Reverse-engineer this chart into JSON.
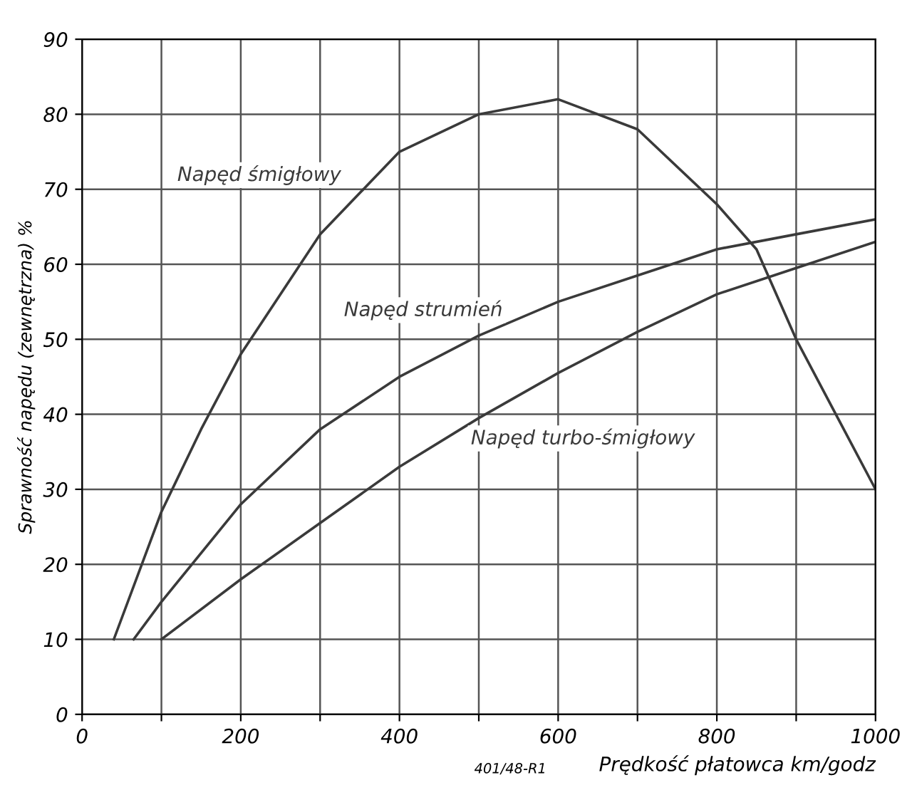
{
  "chart_data": {
    "type": "line",
    "xlabel": "Prędkość płatowca km/godz",
    "ylabel": "Sprawność napędu (zewnętrzna) %",
    "series": [
      {
        "name": "Napęd śmigłowy",
        "color": "#3a3a3a",
        "x": [
          40,
          100,
          150,
          200,
          300,
          400,
          500,
          600,
          700,
          800,
          850,
          900,
          950,
          1000
        ],
        "values": [
          10,
          27,
          38,
          48,
          64,
          75,
          80,
          82,
          78,
          68,
          62,
          50,
          40,
          30
        ]
      },
      {
        "name": "Napęd strumień",
        "color": "#3a3a3a",
        "x": [
          65,
          100,
          200,
          300,
          400,
          500,
          600,
          700,
          800,
          900,
          1000
        ],
        "values": [
          10,
          15,
          28,
          38,
          45,
          50.5,
          55,
          58.5,
          62,
          64,
          66
        ]
      },
      {
        "name": "Napęd turbo-śmigłowy",
        "color": "#3a3a3a",
        "x": [
          100,
          200,
          300,
          400,
          500,
          600,
          700,
          800,
          900,
          1000
        ],
        "values": [
          10,
          18,
          25.5,
          33,
          39.5,
          45.5,
          51,
          56,
          59.5,
          63
        ]
      }
    ],
    "xlim": [
      0,
      1000
    ],
    "ylim": [
      0,
      90
    ],
    "xticks": [
      0,
      {
        "value": 100,
        "label": null
      },
      200,
      {
        "value": 300,
        "label": null
      },
      400,
      {
        "value": 500,
        "label": null
      },
      600,
      {
        "value": 700,
        "label": null
      },
      800,
      {
        "value": 900,
        "label": null
      },
      1000
    ],
    "yticks": [
      0,
      10,
      20,
      30,
      40,
      50,
      60,
      70,
      80,
      90
    ],
    "grid": true,
    "legend": false,
    "marker": "none",
    "line_style": "solid",
    "annotations": [
      "401/48-R1"
    ]
  }
}
